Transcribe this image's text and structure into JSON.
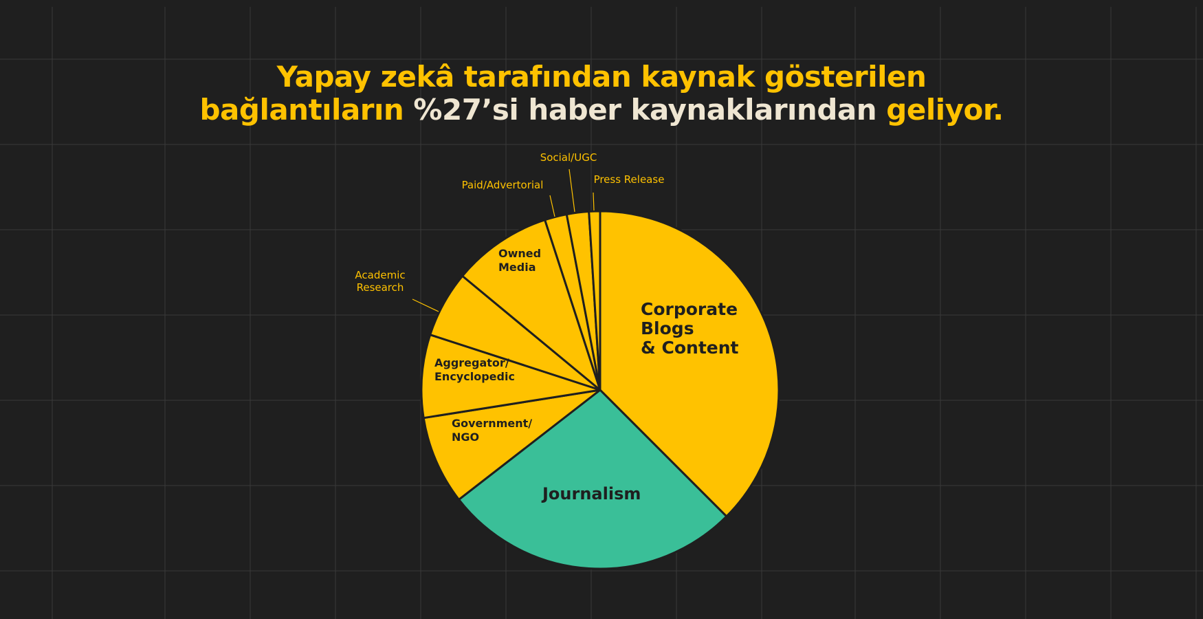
{
  "title": {
    "line1": "Yapay zekâ tarafından kaynak gösterilen",
    "line2_part1": "bağlantıların ",
    "line2_part2": "%27’si haber kaynaklarından ",
    "line2_part3": "geliyor."
  },
  "colors": {
    "background": "#1f1f1f",
    "accent": "#ffc200",
    "highlight": "#3abf98",
    "title_secondary": "#efe6d2",
    "label_dark": "#1f1f1f"
  },
  "chart_data": {
    "type": "pie",
    "title": "Yapay zekâ tarafından kaynak gösterilen bağlantıların %27’si haber kaynaklarından geliyor.",
    "start": "12 o'clock",
    "direction": "clockwise",
    "slices": [
      {
        "label": "Corporate Blogs & Content",
        "lines": [
          "Corporate",
          "Blogs",
          "& Content"
        ],
        "value": 37.5,
        "color": "#ffc200",
        "label_pos": "inside"
      },
      {
        "label": "Journalism",
        "lines": [
          "Journalism"
        ],
        "value": 27.0,
        "color": "#3abf98",
        "label_pos": "inside"
      },
      {
        "label": "Government/NGO",
        "lines": [
          "Government/",
          "NGO"
        ],
        "value": 8.0,
        "color": "#ffc200",
        "label_pos": "inside"
      },
      {
        "label": "Aggregator/Encyclopedic",
        "lines": [
          "Aggregator/",
          "Encyclopedic"
        ],
        "value": 7.5,
        "color": "#ffc200",
        "label_pos": "inside"
      },
      {
        "label": "Academic Research",
        "lines": [
          "Academic",
          "Research"
        ],
        "value": 6.0,
        "color": "#ffc200",
        "label_pos": "outside"
      },
      {
        "label": "Owned Media",
        "lines": [
          "Owned",
          "Media"
        ],
        "value": 9.0,
        "color": "#ffc200",
        "label_pos": "inside"
      },
      {
        "label": "Paid/Advertorial",
        "lines": [
          "Paid/Advertorial"
        ],
        "value": 2.0,
        "color": "#ffc200",
        "label_pos": "outside"
      },
      {
        "label": "Social/UGC",
        "lines": [
          "Social/UGC"
        ],
        "value": 2.0,
        "color": "#ffc200",
        "label_pos": "outside"
      },
      {
        "label": "Press Release",
        "lines": [
          "Press Release"
        ],
        "value": 1.0,
        "color": "#ffc200",
        "label_pos": "outside"
      }
    ]
  }
}
